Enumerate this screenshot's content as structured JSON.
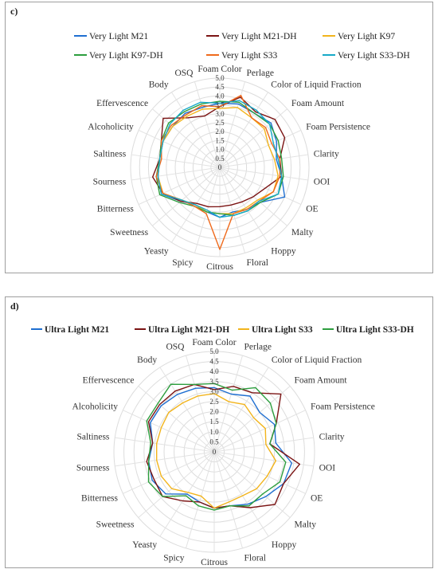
{
  "chart_data": [
    {
      "panel": "c)",
      "type": "radar",
      "r_range": [
        0,
        5
      ],
      "r_ticks": [
        "0",
        "0.5",
        "1.0",
        "1.5",
        "2.0",
        "2.5",
        "3.0",
        "3.5",
        "4.0",
        "4.5",
        "5.0"
      ],
      "axes": [
        "Foam Color",
        "Perlage",
        "Color of Liquid Fraction",
        "Foam Amount",
        "Foam Persistence",
        "Clarity",
        "OOI",
        "OE",
        "Malty",
        "Hoppy",
        "Floral",
        "Citrous",
        "Spicy",
        "Yeasty",
        "Sweetness",
        "Bitterness",
        "Sourness",
        "Saltiness",
        "Alcoholicity",
        "Effervescence",
        "Body",
        "OSQ"
      ],
      "legend_bold": false,
      "series": [
        {
          "name": "Very Light M21",
          "color": "#1f6fd1",
          "values": [
            3.6,
            3.7,
            3.6,
            3.8,
            3.5,
            3.2,
            3.5,
            4.0,
            3.0,
            2.8,
            2.6,
            2.8,
            2.6,
            2.5,
            2.9,
            3.6,
            3.5,
            3.4,
            3.5,
            3.5,
            3.6,
            3.5
          ]
        },
        {
          "name": "Very Light M21-DH",
          "color": "#7b1414",
          "values": [
            3.4,
            4.1,
            3.7,
            4.1,
            4.0,
            3.4,
            3.5,
            2.8,
            2.5,
            2.3,
            2.2,
            2.2,
            2.3,
            2.4,
            2.9,
            3.5,
            3.8,
            3.4,
            3.6,
            4.2,
            3.3,
            3.0
          ]
        },
        {
          "name": "Very Light K97",
          "color": "#f2b41c",
          "values": [
            3.3,
            3.5,
            3.3,
            3.3,
            3.0,
            3.1,
            3.3,
            3.3,
            2.8,
            2.7,
            2.7,
            2.6,
            2.6,
            2.5,
            2.8,
            3.5,
            3.5,
            3.4,
            3.5,
            3.5,
            3.4,
            3.4
          ]
        },
        {
          "name": "Very Light K97-DH",
          "color": "#2d9e3e",
          "values": [
            3.7,
            3.8,
            3.6,
            3.7,
            3.6,
            3.5,
            3.6,
            3.6,
            3.0,
            2.9,
            2.8,
            2.6,
            2.6,
            2.6,
            3.0,
            3.7,
            3.6,
            3.4,
            3.6,
            3.8,
            3.7,
            3.7
          ]
        },
        {
          "name": "Very Light S33",
          "color": "#ef6a1c",
          "values": [
            3.4,
            4.2,
            3.3,
            3.4,
            3.2,
            3.4,
            3.4,
            3.3,
            2.9,
            2.8,
            2.7,
            4.6,
            2.7,
            2.6,
            2.8,
            3.5,
            3.6,
            3.3,
            3.6,
            3.6,
            3.5,
            3.6
          ]
        },
        {
          "name": "Very Light S33-DH",
          "color": "#16a9c8",
          "values": [
            3.6,
            3.9,
            3.8,
            3.7,
            3.3,
            3.3,
            3.5,
            3.6,
            2.9,
            2.9,
            2.8,
            2.8,
            2.5,
            2.5,
            2.8,
            3.6,
            3.5,
            3.4,
            3.5,
            3.7,
            3.8,
            3.8
          ]
        }
      ]
    },
    {
      "panel": "d)",
      "type": "radar",
      "r_range": [
        0,
        5
      ],
      "r_ticks": [
        "0",
        "0.5",
        "1.0",
        "1.5",
        "2.0",
        "2.5",
        "3.0",
        "3.5",
        "4.0",
        "4.5",
        "5.0"
      ],
      "axes": [
        "Foam Color",
        "Perlage",
        "Color of Liquid Fraction",
        "Foam Amount",
        "Foam Persistence",
        "Clarity",
        "OOI",
        "OE",
        "Malty",
        "Hoppy",
        "Floral",
        "Citrous",
        "Spicy",
        "Yeasty",
        "Sweetness",
        "Bitterness",
        "Sourness",
        "Saltiness",
        "Alcoholicity",
        "Effervescence",
        "Body",
        "OSQ"
      ],
      "legend_bold": true,
      "series": [
        {
          "name": "Ultra Light M21",
          "color": "#1f6fd1",
          "values": [
            3.2,
            3.0,
            3.3,
            3.0,
            3.3,
            3.1,
            3.9,
            3.8,
            3.4,
            3.1,
            2.8,
            2.8,
            2.6,
            2.5,
            3.2,
            3.4,
            3.3,
            3.1,
            3.5,
            3.5,
            3.4,
            3.3
          ]
        },
        {
          "name": "Ultra Light M21-DH",
          "color": "#7b1414",
          "values": [
            3.1,
            3.4,
            3.5,
            4.4,
            3.4,
            2.8,
            4.3,
            3.8,
            4.0,
            3.3,
            2.8,
            2.8,
            2.6,
            2.9,
            3.4,
            3.3,
            3.4,
            3.1,
            3.6,
            3.6,
            3.6,
            3.5
          ]
        },
        {
          "name": "Ultra Light S33",
          "color": "#f2b41c",
          "values": [
            2.9,
            2.6,
            2.8,
            2.6,
            2.8,
            2.6,
            3.1,
            2.9,
            2.8,
            2.6,
            2.6,
            2.8,
            2.3,
            2.4,
            2.8,
            2.9,
            2.9,
            2.9,
            2.9,
            3.0,
            2.9,
            2.9
          ]
        },
        {
          "name": "Ultra Light S33-DH",
          "color": "#2d9e3e",
          "values": [
            3.4,
            3.2,
            3.8,
            3.7,
            3.4,
            2.8,
            3.6,
            3.6,
            3.2,
            3.2,
            2.8,
            2.9,
            2.8,
            2.6,
            3.4,
            3.6,
            3.3,
            3.2,
            3.7,
            3.7,
            4.0,
            3.5
          ]
        }
      ]
    }
  ]
}
